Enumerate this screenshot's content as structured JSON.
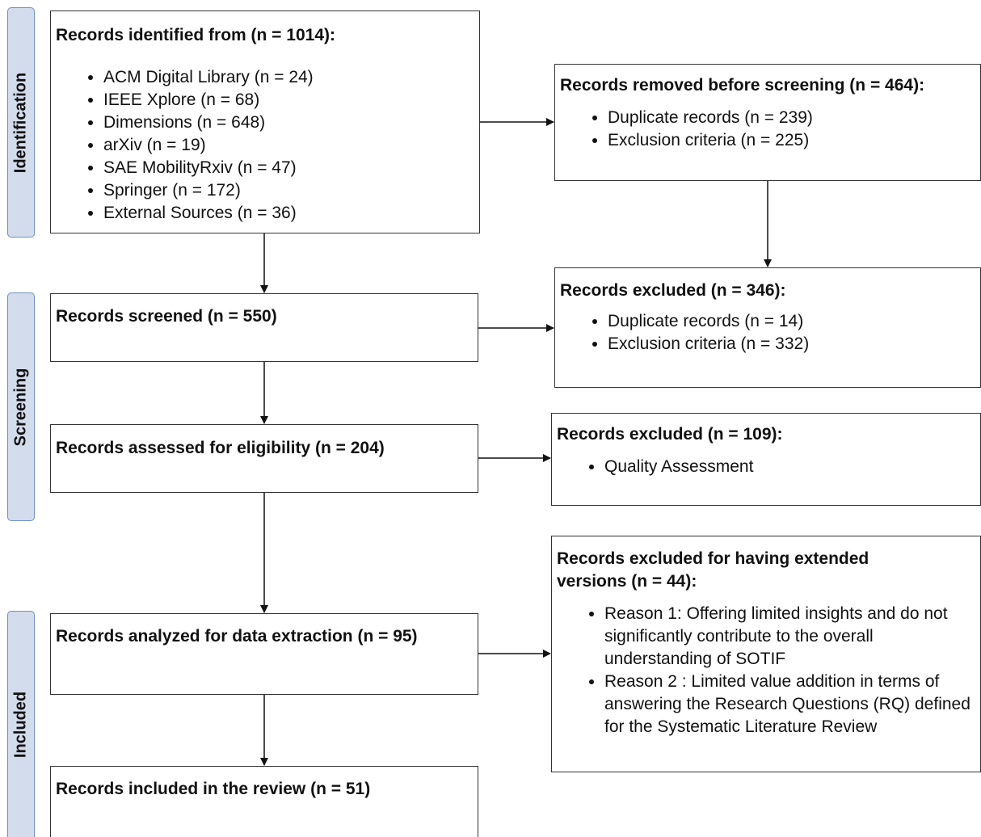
{
  "phases": {
    "identification": "Identification",
    "screening": "Screening",
    "included": "Included"
  },
  "identified": {
    "title": "Records identified from (n = 1014):",
    "items": [
      "ACM Digital Library (n = 24)",
      "IEEE Xplore (n = 68)",
      "Dimensions (n = 648)",
      "arXiv (n = 19)",
      "SAE MobilityRxiv (n = 47)",
      "Springer (n = 172)",
      "External Sources (n = 36)"
    ]
  },
  "removed": {
    "title": "Records removed before screening (n = 464):",
    "items": [
      "Duplicate records (n = 239)",
      "Exclusion criteria (n = 225)"
    ]
  },
  "screened": {
    "title": "Records screened (n = 550)"
  },
  "excluded_screening": {
    "title": "Records excluded (n = 346):",
    "items": [
      "Duplicate records (n = 14)",
      "Exclusion criteria (n = 332)"
    ]
  },
  "assessed": {
    "title": "Records assessed for eligibility (n = 204)"
  },
  "excluded_quality": {
    "title": "Records excluded (n = 109):",
    "items": [
      "Quality Assessment"
    ]
  },
  "analyzed": {
    "title": "Records analyzed for data extraction (n = 95)"
  },
  "excluded_extended": {
    "title": "Records excluded for having extended versions (n = 44):",
    "items": [
      "Reason 1: Offering limited insights and do not significantly contribute to the overall understanding of SOTIF",
      "Reason 2 : Limited value addition in terms of answering the Research Questions (RQ) defined for the Systematic Literature Review"
    ]
  },
  "included": {
    "title": "Records included in the review (n = 51)"
  }
}
